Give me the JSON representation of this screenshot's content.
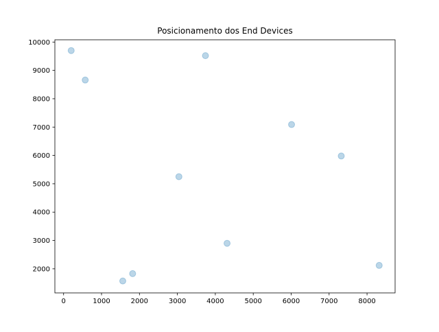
{
  "chart_data": {
    "type": "scatter",
    "title": "Posicionamento dos End Devices",
    "xlabel": "",
    "ylabel": "",
    "xlim": [
      -230,
      8740
    ],
    "ylim": [
      1150,
      10080
    ],
    "xticks": [
      0,
      1000,
      2000,
      3000,
      4000,
      5000,
      6000,
      7000,
      8000
    ],
    "xtick_labels": [
      "0",
      "1000",
      "2000",
      "3000",
      "4000",
      "5000",
      "6000",
      "7000",
      "8000"
    ],
    "yticks": [
      2000,
      3000,
      4000,
      5000,
      6000,
      7000,
      8000,
      9000,
      10000
    ],
    "ytick_labels": [
      "2000",
      "3000",
      "4000",
      "5000",
      "6000",
      "7000",
      "8000",
      "9000",
      "10000"
    ],
    "grid": false,
    "legend": false,
    "marker_color": "#1f77b4",
    "marker_alpha": 0.3,
    "points": [
      {
        "x": 200,
        "y": 9700
      },
      {
        "x": 570,
        "y": 8660
      },
      {
        "x": 3740,
        "y": 9520
      },
      {
        "x": 6010,
        "y": 7090
      },
      {
        "x": 7320,
        "y": 5980
      },
      {
        "x": 3040,
        "y": 5250
      },
      {
        "x": 4310,
        "y": 2900
      },
      {
        "x": 8320,
        "y": 2120
      },
      {
        "x": 1820,
        "y": 1830
      },
      {
        "x": 1560,
        "y": 1570
      }
    ]
  }
}
